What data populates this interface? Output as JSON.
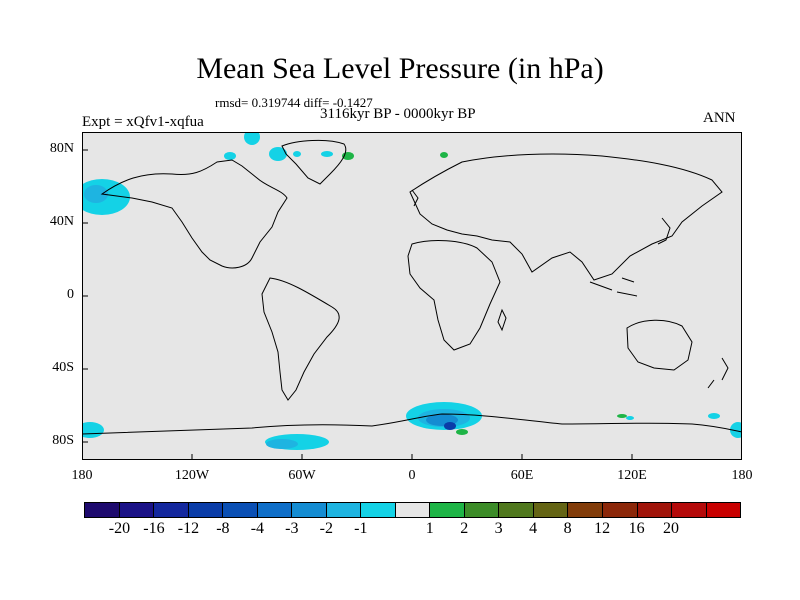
{
  "title": "Mean Sea Level Pressure (in hPa)",
  "stats": "rmsd= 0.319744 diff= -0.1427",
  "period": "3116kyr BP - 0000kyr BP",
  "experiment": "Expt = xQfv1-xqfua",
  "season": "ANN",
  "lat_ticks": [
    "80N",
    "40N",
    "0",
    "40S",
    "80S"
  ],
  "lon_ticks": [
    "180",
    "120W",
    "60W",
    "0",
    "60E",
    "120E",
    "180"
  ],
  "colorbar": {
    "colors": [
      "#1e0a6e",
      "#1b1287",
      "#14289e",
      "#0a3ca8",
      "#0a4fb4",
      "#0f6ec8",
      "#148cd2",
      "#1eb4e1",
      "#14d2e6",
      "#e6e6e6",
      "#1eb446",
      "#3c8c28",
      "#50781e",
      "#646414",
      "#823c0a",
      "#8c280a",
      "#a0140a",
      "#b40a0a",
      "#c80000"
    ],
    "labels": [
      "-20",
      "-16",
      "-12",
      "-8",
      "-4",
      "-3",
      "-2",
      "-1",
      "1",
      "2",
      "3",
      "4",
      "8",
      "12",
      "16",
      "20"
    ]
  }
}
